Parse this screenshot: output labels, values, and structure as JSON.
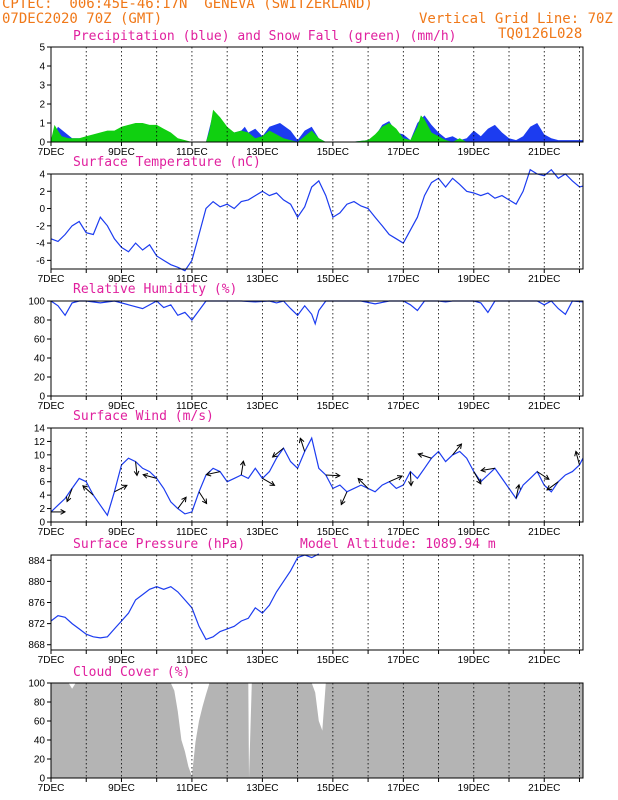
{
  "header": {
    "line1_left": "CPTEC:  006:45E-46:17N  GENEVA (SWITZERLAND)",
    "line2_left": "07DEC2020 70Z (GMT)",
    "line2_right": "Vertical Grid Line: 70Z",
    "line3_right": "TQ0126L028"
  },
  "colors": {
    "header": "#f07818",
    "title": "#e0209e",
    "line": "#1c3cf0",
    "snow": "#10d010",
    "cloud": "#b4b4b4"
  },
  "x_axis": {
    "labels": [
      "7DEC",
      "9DEC",
      "11DEC",
      "13DEC",
      "15DEC",
      "17DEC",
      "19DEC",
      "21DEC"
    ],
    "start_day": 7,
    "end_day": 22.1
  },
  "chart_data": [
    {
      "id": "precip",
      "type": "area",
      "title": "Precipitation (blue) and Snow Fall (green) (mm/h)",
      "ylim": [
        0,
        5
      ],
      "yticks": [
        0,
        1,
        2,
        3,
        4,
        5
      ],
      "series": [
        {
          "name": "Precipitation",
          "color": "#1c3cf0",
          "x": [
            7.0,
            7.2,
            7.6,
            8.0,
            8.6,
            9.0,
            9.6,
            10.0,
            10.6,
            11.0,
            11.2,
            11.4,
            11.6,
            11.8,
            12.0,
            12.2,
            12.4,
            12.5,
            12.6,
            12.8,
            13.0,
            13.2,
            13.5,
            13.8,
            14.0,
            14.2,
            14.4,
            14.6,
            14.8,
            15.0,
            15.5,
            16.0,
            16.2,
            16.4,
            16.6,
            16.8,
            17.0,
            17.2,
            17.4,
            17.6,
            17.8,
            18.0,
            18.2,
            18.4,
            18.6,
            18.8,
            19.0,
            19.2,
            19.4,
            19.6,
            19.8,
            20.0,
            20.2,
            20.4,
            20.6,
            20.8,
            21.0,
            21.2,
            21.4,
            21.6,
            21.8,
            22.1
          ],
          "y": [
            0.1,
            0.8,
            0.2,
            0.2,
            0.3,
            0.5,
            0.4,
            0.4,
            0.1,
            0.0,
            0.0,
            0.0,
            1.5,
            1.2,
            0.7,
            0.5,
            0.6,
            0.8,
            0.5,
            0.7,
            0.3,
            0.8,
            1.0,
            0.6,
            0.1,
            0.6,
            0.8,
            0.2,
            0.0,
            0.0,
            0.0,
            0.1,
            0.3,
            0.9,
            1.1,
            0.5,
            0.4,
            0.1,
            1.0,
            1.4,
            0.9,
            0.5,
            0.2,
            0.3,
            0.1,
            0.2,
            0.6,
            0.3,
            0.7,
            0.9,
            0.5,
            0.2,
            0.1,
            0.3,
            0.8,
            1.0,
            0.4,
            0.2,
            0.1,
            0.1,
            0.1,
            0.1
          ]
        },
        {
          "name": "Snow Fall",
          "color": "#10d010",
          "x": [
            7.0,
            7.1,
            7.2,
            7.3,
            7.5,
            7.8,
            8.0,
            8.2,
            8.4,
            8.6,
            8.8,
            9.0,
            9.2,
            9.4,
            9.6,
            9.8,
            10.0,
            10.2,
            10.4,
            10.6,
            10.8,
            11.0,
            11.2,
            11.4,
            11.5,
            11.6,
            11.7,
            11.8,
            12.0,
            12.2,
            12.4,
            12.6,
            12.8,
            13.0,
            13.2,
            13.4,
            13.6,
            13.8,
            14.0,
            14.2,
            14.4,
            14.6,
            14.8,
            15.0,
            15.5,
            16.0,
            16.2,
            16.4,
            16.6,
            16.8,
            17.0,
            17.2,
            17.4,
            17.5,
            17.6,
            17.8,
            18.0,
            18.2,
            18.4,
            18.6,
            18.8,
            19.0,
            19.5,
            20.0,
            20.5,
            21.0,
            21.5,
            22.1
          ],
          "y": [
            0.1,
            0.9,
            0.6,
            0.3,
            0.2,
            0.2,
            0.3,
            0.4,
            0.5,
            0.6,
            0.6,
            0.8,
            0.9,
            1.0,
            1.0,
            0.9,
            0.9,
            0.7,
            0.5,
            0.2,
            0.1,
            0.0,
            0.0,
            0.0,
            0.6,
            1.7,
            1.5,
            1.3,
            0.8,
            0.5,
            0.6,
            0.5,
            0.2,
            0.3,
            0.6,
            0.4,
            0.2,
            0.1,
            0.0,
            0.3,
            0.6,
            0.2,
            0.0,
            0.0,
            0.0,
            0.1,
            0.4,
            0.8,
            1.0,
            0.7,
            0.2,
            0.1,
            0.8,
            1.4,
            1.2,
            0.5,
            0.3,
            0.1,
            0.0,
            0.2,
            0.0,
            0.0,
            0.0,
            0.0,
            0.0,
            0.0,
            0.0,
            0.0
          ]
        }
      ]
    },
    {
      "id": "temp",
      "type": "line",
      "title": "Surface Temperature (nC)",
      "ylim": [
        -7,
        4
      ],
      "yticks": [
        -6,
        -4,
        -2,
        0,
        2,
        4
      ],
      "series": [
        {
          "name": "Temperature",
          "color": "#1c3cf0",
          "x": [
            7.0,
            7.2,
            7.4,
            7.6,
            7.8,
            8.0,
            8.2,
            8.4,
            8.6,
            8.8,
            9.0,
            9.2,
            9.4,
            9.6,
            9.8,
            10.0,
            10.2,
            10.4,
            10.6,
            10.8,
            11.0,
            11.2,
            11.4,
            11.6,
            11.8,
            12.0,
            12.2,
            12.4,
            12.6,
            12.8,
            13.0,
            13.2,
            13.4,
            13.6,
            13.8,
            14.0,
            14.2,
            14.4,
            14.6,
            14.8,
            15.0,
            15.2,
            15.4,
            15.6,
            15.8,
            16.0,
            16.2,
            16.4,
            16.6,
            16.8,
            17.0,
            17.2,
            17.4,
            17.6,
            17.8,
            18.0,
            18.2,
            18.4,
            18.6,
            18.8,
            19.0,
            19.2,
            19.4,
            19.6,
            19.8,
            20.0,
            20.2,
            20.4,
            20.6,
            20.8,
            21.0,
            21.2,
            21.4,
            21.6,
            21.8,
            22.0,
            22.1
          ],
          "y": [
            -3.5,
            -3.8,
            -3.0,
            -2.0,
            -1.5,
            -2.8,
            -3.0,
            -1.0,
            -2.0,
            -3.5,
            -4.5,
            -5.0,
            -4.0,
            -4.8,
            -4.2,
            -5.5,
            -6.0,
            -6.5,
            -6.8,
            -7.2,
            -6.0,
            -3.0,
            0.0,
            0.8,
            0.2,
            0.5,
            0.0,
            0.8,
            1.0,
            1.5,
            2.0,
            1.5,
            1.8,
            1.0,
            0.5,
            -1.0,
            0.2,
            2.5,
            3.2,
            1.5,
            -1.0,
            -0.5,
            0.5,
            0.8,
            0.3,
            0.0,
            -1.0,
            -2.0,
            -3.0,
            -3.5,
            -4.0,
            -2.5,
            -1.0,
            1.5,
            3.0,
            3.5,
            2.5,
            3.5,
            2.8,
            2.0,
            1.8,
            1.5,
            1.8,
            1.2,
            1.5,
            1.0,
            0.5,
            2.0,
            4.5,
            4.0,
            3.8,
            4.5,
            3.5,
            4.0,
            3.2,
            2.5,
            2.6
          ]
        }
      ]
    },
    {
      "id": "rh",
      "type": "line",
      "title": "Relative Humidity (%)",
      "ylim": [
        0,
        100
      ],
      "yticks": [
        0,
        20,
        40,
        60,
        80,
        100
      ],
      "series": [
        {
          "name": "Relative Humidity",
          "color": "#1c3cf0",
          "x": [
            7.0,
            7.2,
            7.4,
            7.6,
            7.8,
            8.0,
            8.4,
            8.8,
            9.2,
            9.6,
            10.0,
            10.2,
            10.4,
            10.6,
            10.8,
            11.0,
            11.2,
            11.4,
            11.6,
            11.8,
            12.0,
            12.4,
            12.8,
            13.2,
            13.4,
            13.6,
            13.8,
            14.0,
            14.2,
            14.4,
            14.5,
            14.6,
            14.8,
            15.0,
            15.4,
            15.8,
            16.2,
            16.6,
            17.0,
            17.2,
            17.4,
            17.6,
            17.8,
            18.0,
            18.2,
            18.4,
            18.6,
            18.8,
            19.0,
            19.2,
            19.4,
            19.6,
            19.8,
            20.0,
            20.4,
            20.8,
            21.0,
            21.2,
            21.4,
            21.6,
            21.8,
            22.1
          ],
          "y": [
            100,
            95,
            85,
            98,
            100,
            100,
            98,
            100,
            96,
            92,
            100,
            93,
            96,
            85,
            88,
            80,
            90,
            100,
            100,
            100,
            100,
            100,
            99,
            100,
            98,
            100,
            92,
            85,
            95,
            86,
            76,
            90,
            100,
            100,
            100,
            100,
            97,
            100,
            100,
            96,
            90,
            100,
            100,
            100,
            99,
            100,
            100,
            100,
            100,
            98,
            88,
            100,
            100,
            100,
            100,
            100,
            96,
            100,
            92,
            86,
            100,
            99
          ]
        }
      ]
    },
    {
      "id": "wind",
      "type": "line",
      "title": "Surface Wind (m/s)",
      "ylim": [
        0,
        14
      ],
      "yticks": [
        0,
        2,
        4,
        6,
        8,
        10,
        12,
        14
      ],
      "series": [
        {
          "name": "Wind Speed",
          "color": "#1c3cf0",
          "x": [
            7.0,
            7.2,
            7.4,
            7.6,
            7.8,
            8.0,
            8.2,
            8.4,
            8.6,
            8.8,
            9.0,
            9.2,
            9.4,
            9.6,
            9.8,
            10.0,
            10.2,
            10.4,
            10.6,
            10.8,
            11.0,
            11.2,
            11.4,
            11.6,
            11.8,
            12.0,
            12.2,
            12.4,
            12.6,
            12.8,
            13.0,
            13.2,
            13.4,
            13.6,
            13.8,
            14.0,
            14.2,
            14.4,
            14.6,
            14.8,
            15.0,
            15.2,
            15.4,
            15.6,
            15.8,
            16.0,
            16.2,
            16.4,
            16.6,
            16.8,
            17.0,
            17.2,
            17.4,
            17.6,
            17.8,
            18.0,
            18.2,
            18.4,
            18.6,
            18.8,
            19.0,
            19.2,
            19.4,
            19.6,
            19.8,
            20.0,
            20.2,
            20.4,
            20.6,
            20.8,
            21.0,
            21.2,
            21.4,
            21.6,
            21.8,
            22.0,
            22.1
          ],
          "y": [
            1.5,
            2.5,
            3.5,
            5.0,
            6.5,
            6.0,
            4.0,
            2.5,
            1.0,
            4.5,
            8.5,
            9.5,
            9.0,
            8.0,
            7.5,
            6.5,
            5.0,
            3.0,
            2.0,
            1.2,
            1.5,
            4.5,
            7.0,
            8.0,
            7.5,
            6.0,
            6.5,
            7.0,
            6.5,
            8.0,
            6.5,
            7.5,
            9.5,
            11.0,
            9.0,
            8.0,
            10.5,
            12.5,
            8.0,
            7.0,
            5.0,
            5.5,
            4.5,
            5.0,
            5.5,
            5.0,
            4.5,
            5.5,
            6.0,
            5.0,
            5.5,
            7.5,
            6.5,
            8.0,
            9.5,
            10.5,
            9.0,
            10.0,
            10.5,
            9.5,
            7.5,
            6.0,
            7.0,
            8.0,
            6.5,
            5.0,
            3.5,
            5.5,
            6.5,
            7.5,
            5.5,
            4.5,
            6.0,
            7.0,
            7.5,
            8.5,
            9.5
          ]
        }
      ],
      "vectors_note": "wind direction arrows"
    },
    {
      "id": "pressure",
      "type": "line",
      "title": "Surface Pressure (hPa)",
      "annotation": "Model Altitude: 1089.94 m",
      "ylim": [
        867,
        885
      ],
      "yticks": [
        868,
        872,
        876,
        880,
        884
      ],
      "series": [
        {
          "name": "Pressure",
          "color": "#1c3cf0",
          "x": [
            7.0,
            7.2,
            7.4,
            7.6,
            7.8,
            8.0,
            8.2,
            8.4,
            8.6,
            8.8,
            9.0,
            9.2,
            9.4,
            9.6,
            9.8,
            10.0,
            10.2,
            10.4,
            10.6,
            10.8,
            11.0,
            11.2,
            11.4,
            11.6,
            11.8,
            12.0,
            12.2,
            12.4,
            12.6,
            12.8,
            13.0,
            13.2,
            13.4,
            13.6,
            13.8,
            14.0,
            14.2,
            14.4,
            14.6
          ],
          "y": [
            872.5,
            873.5,
            873.2,
            872.0,
            871.0,
            870.0,
            869.5,
            869.3,
            869.5,
            871.0,
            872.5,
            874.0,
            876.5,
            877.5,
            878.5,
            879.0,
            878.5,
            879.0,
            878.0,
            876.5,
            875.0,
            871.5,
            869.0,
            869.5,
            870.5,
            871.0,
            871.5,
            872.5,
            873.0,
            875.0,
            874.0,
            875.5,
            878.0,
            880.0,
            882.0,
            884.5,
            885.0,
            884.5,
            885.2
          ]
        }
      ]
    },
    {
      "id": "cloud",
      "type": "area",
      "title": "Cloud Cover (%)",
      "ylim": [
        0,
        100
      ],
      "yticks": [
        0,
        20,
        40,
        60,
        80,
        100
      ],
      "series": [
        {
          "name": "Cloud Cover",
          "color": "#b4b4b4",
          "x": [
            7.0,
            7.5,
            7.6,
            7.7,
            8.0,
            9.0,
            10.0,
            10.4,
            10.5,
            10.6,
            10.7,
            10.8,
            10.9,
            11.0,
            11.1,
            11.2,
            11.3,
            11.4,
            11.5,
            12.0,
            12.5,
            12.6,
            12.62,
            12.7,
            13.0,
            14.0,
            14.4,
            14.5,
            14.6,
            14.7,
            14.8,
            15.0,
            16.0,
            17.0,
            18.0,
            19.0,
            20.0,
            21.0,
            22.1
          ],
          "y": [
            100,
            100,
            94,
            100,
            100,
            100,
            100,
            100,
            92,
            70,
            40,
            28,
            12,
            2,
            38,
            60,
            75,
            88,
            100,
            100,
            100,
            100,
            0,
            100,
            100,
            100,
            100,
            90,
            60,
            50,
            100,
            100,
            100,
            100,
            100,
            100,
            100,
            100,
            100
          ]
        }
      ]
    }
  ]
}
